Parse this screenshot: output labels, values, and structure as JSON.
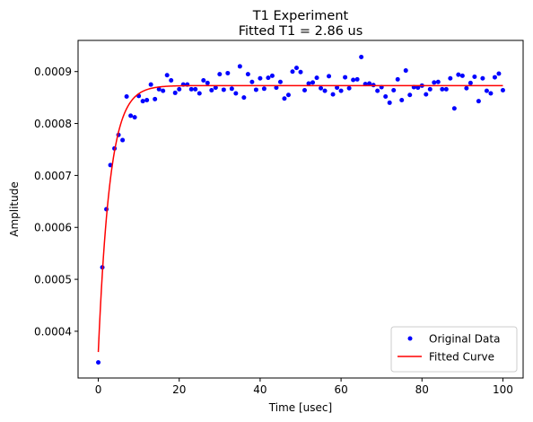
{
  "chart_data": {
    "type": "scatter",
    "title_line1": "T1 Experiment",
    "title_line2": "Fitted T1 = 2.86 us",
    "xlabel": "Time [usec]",
    "ylabel": "Amplitude",
    "xlim": [
      -5,
      105
    ],
    "ylim": [
      0.00031,
      0.00096
    ],
    "xticks": [
      0,
      20,
      40,
      60,
      80,
      100
    ],
    "xtick_labels": [
      "0",
      "20",
      "40",
      "60",
      "80",
      "100"
    ],
    "yticks": [
      0.0004,
      0.0005,
      0.0006,
      0.0007,
      0.0008,
      0.0009
    ],
    "ytick_labels": [
      "0.0004",
      "0.0005",
      "0.0006",
      "0.0007",
      "0.0008",
      "0.0009"
    ],
    "grid": false,
    "legend_position": "lower-right",
    "series": [
      {
        "name": "Original Data",
        "kind": "points",
        "color": "#0000ff",
        "x": [
          0,
          1,
          2,
          3,
          4,
          5,
          6,
          7,
          8,
          9,
          10,
          11,
          12,
          13,
          14,
          15,
          16,
          17,
          18,
          19,
          20,
          21,
          22,
          23,
          24,
          25,
          26,
          27,
          28,
          29,
          30,
          31,
          32,
          33,
          34,
          35,
          36,
          37,
          38,
          39,
          40,
          41,
          42,
          43,
          44,
          45,
          46,
          47,
          48,
          49,
          50,
          51,
          52,
          53,
          54,
          55,
          56,
          57,
          58,
          59,
          60,
          61,
          62,
          63,
          64,
          65,
          66,
          67,
          68,
          69,
          70,
          71,
          72,
          73,
          74,
          75,
          76,
          77,
          78,
          79,
          80,
          81,
          82,
          83,
          84,
          85,
          86,
          87,
          88,
          89,
          90,
          91,
          92,
          93,
          94,
          95,
          96,
          97,
          98,
          99,
          100
        ],
        "y": [
          0.00034,
          0.000523,
          0.000635,
          0.00072,
          0.000752,
          0.000778,
          0.000768,
          0.000852,
          0.000815,
          0.000812,
          0.000853,
          0.000843,
          0.000845,
          0.000875,
          0.000847,
          0.000866,
          0.000863,
          0.000893,
          0.000883,
          0.000859,
          0.000866,
          0.000875,
          0.000875,
          0.000866,
          0.000866,
          0.000858,
          0.000883,
          0.000878,
          0.000864,
          0.000869,
          0.000895,
          0.000865,
          0.000897,
          0.000867,
          0.000858,
          0.00091,
          0.00085,
          0.000895,
          0.00088,
          0.000865,
          0.000887,
          0.000867,
          0.000888,
          0.000892,
          0.000869,
          0.00088,
          0.000848,
          0.000855,
          0.0009,
          0.000907,
          0.000899,
          0.000864,
          0.000877,
          0.000879,
          0.000888,
          0.000868,
          0.000863,
          0.000891,
          0.000856,
          0.000869,
          0.000863,
          0.000889,
          0.000868,
          0.000884,
          0.000885,
          0.000928,
          0.000876,
          0.000877,
          0.000874,
          0.000863,
          0.00087,
          0.000852,
          0.00084,
          0.000864,
          0.000885,
          0.000845,
          0.000902,
          0.000855,
          0.00087,
          0.000869,
          0.000873,
          0.000856,
          0.000866,
          0.000879,
          0.00088,
          0.000866,
          0.000866,
          0.000887,
          0.000829,
          0.000894,
          0.000892,
          0.000868,
          0.000878,
          0.00089,
          0.000843,
          0.000887,
          0.000863,
          0.000858,
          0.000889,
          0.000896,
          0.000864
        ]
      },
      {
        "name": "Fitted Curve",
        "kind": "line",
        "color": "#ff0000",
        "model": {
          "form": "exponential recovery",
          "y_start": 0.00036,
          "y_end": 0.000873,
          "t1": 2.86,
          "x_start": 0,
          "x_end": 100
        }
      }
    ]
  }
}
